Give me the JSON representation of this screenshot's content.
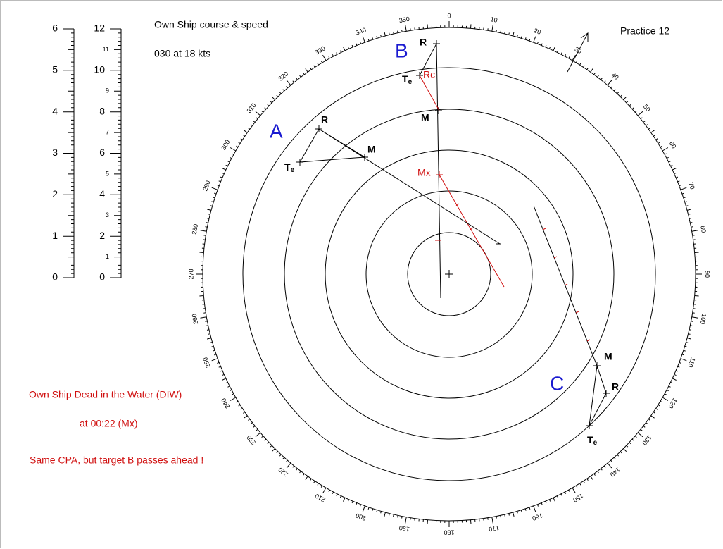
{
  "header": {
    "title": "Own Ship course & speed",
    "course": "030 at 18 kts",
    "practice": "Practice 12"
  },
  "scale_left": [
    0,
    1,
    2,
    3,
    4,
    5,
    6
  ],
  "scale_right_major": [
    0,
    2,
    4,
    6,
    8,
    10,
    12
  ],
  "scale_right_minor": [
    1,
    3,
    5,
    7,
    9,
    11
  ],
  "bearings": [
    0,
    10,
    20,
    30,
    40,
    50,
    60,
    70,
    80,
    90,
    100,
    110,
    120,
    130,
    140,
    150,
    160,
    170,
    180,
    190,
    200,
    210,
    220,
    230,
    240,
    250,
    260,
    270,
    280,
    290,
    300,
    310,
    320,
    330,
    340,
    350
  ],
  "targets": [
    {
      "name": "A",
      "rel": "R",
      "mid": "M",
      "true": {
        "main": "T",
        "sub": "e"
      }
    },
    {
      "name": "B",
      "rel": "R",
      "mid": "M",
      "true": {
        "main": "T",
        "sub": "e"
      },
      "rc": "Rc",
      "mx": "Mx"
    },
    {
      "name": "C",
      "rel": "R",
      "mid": "M",
      "true": {
        "main": "T",
        "sub": "e"
      }
    }
  ],
  "notes": [
    "Own Ship Dead in the Water (DIW)",
    "at 00:22  (Mx)",
    "Same CPA, but  target B passes ahead !"
  ]
}
